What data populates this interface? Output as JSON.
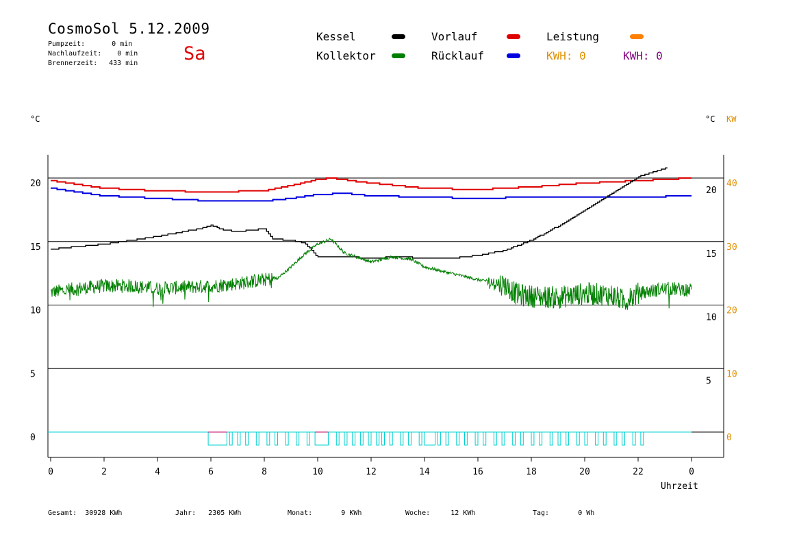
{
  "header": {
    "title": "CosmoSol 5.12.2009",
    "day": "Sa",
    "pumpzeit_label": "Pumpzeit:",
    "pumpzeit_value": "0 min",
    "nachlauf_label": "Nachlaufzeit:",
    "nachlauf_value": "0 min",
    "brenner_label": "Brennerzeit:",
    "brenner_value": "433 min"
  },
  "legend": {
    "kessel": "Kessel",
    "kollektor": "Kollektor",
    "vorlauf": "Vorlauf",
    "ruecklauf": "Rücklauf",
    "leistung": "Leistung",
    "kwh1": "KWH: 0",
    "kwh2": "KWH: 0"
  },
  "colors": {
    "kessel": "#000000",
    "kollektor": "#008000",
    "vorlauf": "#e00000",
    "ruecklauf": "#0000e0",
    "leistung": "#ff8000",
    "kwh": "#800080",
    "pump": "#00d0d0",
    "right_axis": "#e09000"
  },
  "axes": {
    "left_unit": "°C",
    "right_unit_c": "°C",
    "right_unit_kw": "KW",
    "xlabel": "Uhrzeit",
    "x_ticks": [
      "0",
      "2",
      "4",
      "6",
      "8",
      "10",
      "12",
      "14",
      "16",
      "18",
      "20",
      "22",
      "0"
    ],
    "left_ticks": [
      "20",
      "15",
      "10",
      "5",
      "0"
    ],
    "right_c_ticks": [
      "20",
      "15",
      "10",
      "5"
    ],
    "right_kw_ticks": [
      "40",
      "30",
      "20",
      "10",
      "0"
    ]
  },
  "footer": {
    "gesamt_label": "Gesamt:",
    "gesamt_value": "30928 KWh",
    "jahr_label": "Jahr:",
    "jahr_value": "2305 KWh",
    "monat_label": "Monat:",
    "monat_value": "9 KWh",
    "woche_label": "Woche:",
    "woche_value": "12 KWh",
    "tag_label": "Tag:",
    "tag_value": "0 Wh"
  },
  "chart_data": {
    "type": "line",
    "xlabel": "Uhrzeit",
    "ylabel": "°C",
    "xlim": [
      0,
      24
    ],
    "ylim": [
      -2,
      22
    ],
    "grid_y": [
      20,
      15,
      10,
      5,
      0
    ],
    "series": [
      {
        "name": "Vorlauf",
        "color": "#e00000",
        "x": [
          0,
          1,
          2,
          4,
          6,
          8,
          9,
          10,
          10.5,
          12,
          14,
          16,
          18,
          20,
          22,
          24
        ],
        "y": [
          19.8,
          19.5,
          19.2,
          19.0,
          18.9,
          19.0,
          19.4,
          19.9,
          20.0,
          19.6,
          19.2,
          19.1,
          19.3,
          19.6,
          19.8,
          20.0
        ]
      },
      {
        "name": "Rücklauf",
        "color": "#0000e0",
        "x": [
          0,
          1,
          2,
          4,
          6,
          8,
          9,
          10,
          11,
          12,
          14,
          16,
          18,
          20,
          22,
          24
        ],
        "y": [
          19.2,
          18.9,
          18.6,
          18.4,
          18.2,
          18.2,
          18.4,
          18.7,
          18.8,
          18.6,
          18.5,
          18.4,
          18.5,
          18.5,
          18.5,
          18.6
        ]
      },
      {
        "name": "Kessel",
        "color": "#000000",
        "x": [
          0,
          1,
          2,
          3,
          4,
          5,
          5.8,
          6,
          6.5,
          7,
          7.5,
          8,
          8.3,
          9,
          9.5,
          10,
          11,
          12,
          13,
          14,
          15,
          16,
          17,
          18,
          19,
          20,
          21,
          22,
          23.1
        ],
        "y": [
          14.4,
          14.6,
          14.8,
          15.1,
          15.4,
          15.8,
          16.1,
          16.3,
          15.9,
          15.8,
          15.9,
          16.0,
          15.2,
          15.1,
          14.9,
          13.8,
          13.8,
          13.7,
          13.8,
          13.7,
          13.7,
          13.9,
          14.3,
          15.1,
          16.2,
          17.5,
          18.8,
          20.1,
          20.8
        ]
      },
      {
        "name": "Kollektor",
        "color": "#008000",
        "x": [
          0,
          1,
          2,
          3,
          4,
          5,
          6,
          7,
          8,
          8.5,
          9,
          9.5,
          10,
          10.5,
          11,
          12,
          12.8,
          13.5,
          14,
          15,
          16,
          17,
          17.5,
          18,
          19,
          20,
          21,
          21.5,
          22,
          23,
          24
        ],
        "y": [
          11.0,
          11.3,
          11.5,
          11.5,
          11.3,
          11.4,
          11.5,
          11.7,
          12.0,
          12.1,
          13.0,
          14.0,
          14.8,
          15.2,
          14.1,
          13.4,
          13.8,
          13.6,
          13.0,
          12.5,
          12.0,
          11.6,
          10.8,
          10.7,
          10.6,
          10.9,
          10.8,
          10.3,
          10.9,
          11.3,
          11.2
        ]
      }
    ],
    "pump_series": {
      "name": "Pumpe",
      "color": "#00d0d0",
      "baseline": 0,
      "level": 0.0,
      "pulses": [
        [
          5.9,
          6.6
        ],
        [
          6.7,
          6.8
        ],
        [
          7.0,
          7.1
        ],
        [
          7.3,
          7.4
        ],
        [
          7.7,
          7.8
        ],
        [
          8.1,
          8.2
        ],
        [
          8.4,
          8.5
        ],
        [
          8.8,
          8.9
        ],
        [
          9.2,
          9.3
        ],
        [
          9.6,
          9.7
        ],
        [
          9.9,
          10.4
        ],
        [
          10.7,
          10.8
        ],
        [
          11.0,
          11.1
        ],
        [
          11.3,
          11.4
        ],
        [
          11.6,
          11.7
        ],
        [
          11.9,
          12.0
        ],
        [
          12.2,
          12.3
        ],
        [
          12.4,
          12.5
        ],
        [
          12.7,
          12.8
        ],
        [
          13.1,
          13.2
        ],
        [
          13.4,
          13.5
        ],
        [
          13.8,
          13.9
        ],
        [
          14.0,
          14.4
        ],
        [
          14.5,
          14.6
        ],
        [
          14.8,
          14.9
        ],
        [
          15.2,
          15.3
        ],
        [
          15.5,
          15.6
        ],
        [
          15.9,
          16.0
        ],
        [
          16.2,
          16.3
        ],
        [
          16.6,
          16.7
        ],
        [
          16.9,
          17.0
        ],
        [
          17.3,
          17.4
        ],
        [
          17.6,
          17.7
        ],
        [
          18.0,
          18.1
        ],
        [
          18.3,
          18.4
        ],
        [
          18.7,
          18.8
        ],
        [
          19.0,
          19.1
        ],
        [
          19.3,
          19.4
        ],
        [
          19.7,
          19.8
        ],
        [
          20.0,
          20.1
        ],
        [
          20.4,
          20.5
        ],
        [
          20.7,
          20.8
        ],
        [
          21.1,
          21.2
        ],
        [
          21.4,
          21.5
        ],
        [
          21.8,
          21.9
        ],
        [
          22.1,
          22.2
        ]
      ]
    }
  }
}
